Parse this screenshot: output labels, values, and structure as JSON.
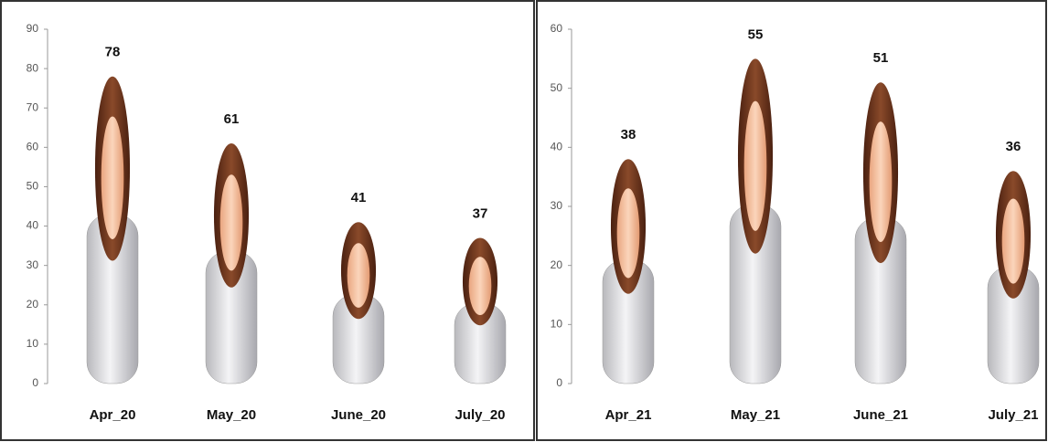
{
  "chart_data": [
    {
      "type": "bar",
      "categories": [
        "Apr_20",
        "May_20",
        "June_20",
        "July_20"
      ],
      "values": [
        78,
        61,
        41,
        37
      ],
      "ylim": [
        0,
        90
      ],
      "yticks": [
        0,
        10,
        20,
        30,
        40,
        50,
        60,
        70,
        80,
        90
      ]
    },
    {
      "type": "bar",
      "categories": [
        "Apr_21",
        "May_21",
        "June_21",
        "July_21"
      ],
      "values": [
        38,
        55,
        51,
        36
      ],
      "ylim": [
        0,
        60
      ],
      "yticks": [
        0,
        10,
        20,
        30,
        40,
        50,
        60
      ]
    }
  ]
}
